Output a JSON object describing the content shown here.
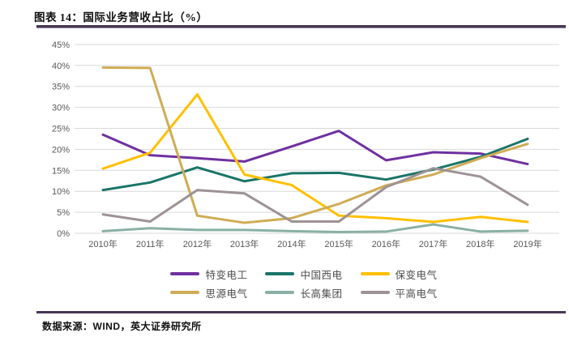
{
  "figure": {
    "title": "图表 14：国际业务营收占比（%）",
    "source": "数据来源：WIND，英大证券研究所"
  },
  "chart_data": {
    "type": "line",
    "title": "国际业务营收占比（%）",
    "categories": [
      "2010年",
      "2011年",
      "2012年",
      "2013年",
      "2014年",
      "2015年",
      "2016年",
      "2017年",
      "2018年",
      "2019年"
    ],
    "series": [
      {
        "name": "特变电工",
        "color": "#7030A0",
        "values": [
          23.5,
          18.6,
          17.9,
          17.1,
          20.7,
          24.4,
          17.4,
          19.3,
          19.0,
          16.5
        ]
      },
      {
        "name": "中国西电",
        "color": "#1A7568",
        "values": [
          10.3,
          12.1,
          15.7,
          12.4,
          14.3,
          14.4,
          12.8,
          15.2,
          18.2,
          22.5
        ]
      },
      {
        "name": "保变电气",
        "color": "#FFC000",
        "values": [
          15.4,
          19.2,
          33.1,
          14.0,
          11.5,
          4.2,
          3.6,
          2.7,
          3.9,
          2.7
        ]
      },
      {
        "name": "思源电气",
        "color": "#CFAC55",
        "values": [
          39.5,
          39.4,
          4.2,
          2.5,
          3.6,
          7.0,
          11.4,
          14.0,
          17.9,
          21.3
        ]
      },
      {
        "name": "长高集团",
        "color": "#8AB0A5",
        "values": [
          0.5,
          1.2,
          0.8,
          0.8,
          0.5,
          0.3,
          0.4,
          2.1,
          0.4,
          0.6
        ]
      },
      {
        "name": "平高电气",
        "color": "#9D9295",
        "values": [
          4.5,
          2.8,
          10.3,
          9.5,
          2.8,
          2.8,
          11.0,
          15.5,
          13.5,
          6.8
        ]
      }
    ],
    "ylim": [
      0,
      45
    ],
    "yticks": [
      0,
      5,
      10,
      15,
      20,
      25,
      30,
      35,
      40,
      45
    ],
    "ytick_suffix": "%",
    "grid": true,
    "legend_position": "bottom",
    "legend_rows": [
      [
        0,
        1,
        2
      ],
      [
        3,
        4,
        5
      ]
    ]
  },
  "colors": {
    "rule": "#473653",
    "grid": "#D9D9D9",
    "axis_text": "#595959"
  }
}
